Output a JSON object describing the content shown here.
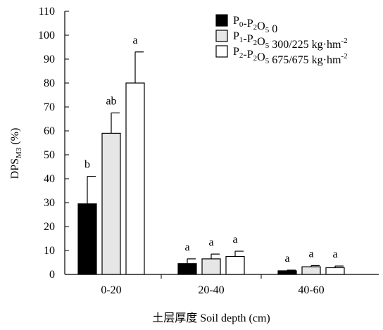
{
  "chart_data": {
    "type": "bar",
    "title": "",
    "xlabel": "土层厚度 Soil depth (cm)",
    "ylabel": "DPSM3 (%)",
    "ylabel_main": "DPS",
    "ylabel_sub": "M3",
    "ylabel_tail": " (%)",
    "ylim": [
      0,
      110
    ],
    "yticks": [
      "0",
      "10",
      "20",
      "30",
      "40",
      "50",
      "60",
      "70",
      "80",
      "90",
      "100",
      "110"
    ],
    "categories": [
      "0-20",
      "20-40",
      "40-60"
    ],
    "legend_position": "top-right",
    "grid": false,
    "series": [
      {
        "name": "P0-P2O5 0",
        "legend_parts": [
          [
            "P",
            ""
          ],
          [
            "0",
            "sub"
          ],
          [
            "-P",
            ""
          ],
          [
            "2",
            "sub"
          ],
          [
            "O",
            ""
          ],
          [
            "5",
            "sub"
          ],
          [
            " 0",
            ""
          ]
        ],
        "fill": "#000000",
        "values": [
          29.5,
          4.5,
          1.5
        ],
        "errors": [
          11.5,
          2.0,
          0.3
        ],
        "labels": [
          "b",
          "a",
          "a"
        ]
      },
      {
        "name": "P1-P2O5 300/225 kg·hm-2",
        "legend_parts": [
          [
            "P",
            ""
          ],
          [
            "1",
            "sub"
          ],
          [
            "-P",
            ""
          ],
          [
            "2",
            "sub"
          ],
          [
            "O",
            ""
          ],
          [
            "5",
            "sub"
          ],
          [
            " 300/225 kg·hm",
            ""
          ],
          [
            "-2",
            "sup"
          ]
        ],
        "fill": "#e6e6e6",
        "values": [
          59,
          6.5,
          3.2
        ],
        "errors": [
          8.5,
          2.0,
          0.5
        ],
        "labels": [
          "ab",
          "a",
          "a"
        ]
      },
      {
        "name": "P2-P2O5 675/675 kg·hm-2",
        "legend_parts": [
          [
            "P",
            ""
          ],
          [
            "2",
            "sub"
          ],
          [
            "-P",
            ""
          ],
          [
            "2",
            "sub"
          ],
          [
            "O",
            ""
          ],
          [
            "5",
            "sub"
          ],
          [
            " 675/675 kg·hm",
            ""
          ],
          [
            "-2",
            "sup"
          ]
        ],
        "fill": "#ffffff",
        "values": [
          80,
          7.5,
          2.8
        ],
        "errors": [
          13,
          2.2,
          0.7
        ],
        "labels": [
          "a",
          "a",
          "a"
        ]
      }
    ]
  }
}
